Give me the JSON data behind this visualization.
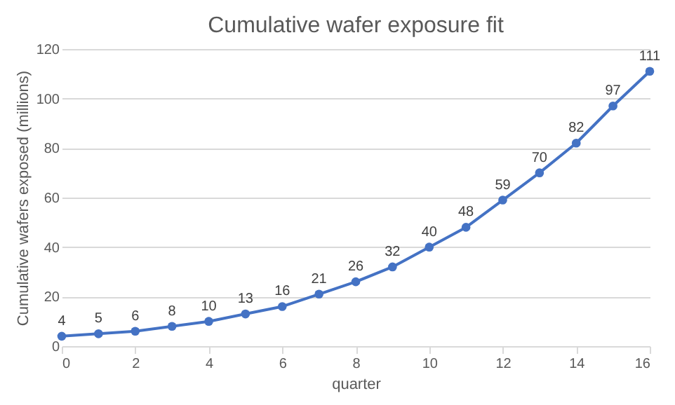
{
  "chart_data": {
    "type": "line",
    "title": "Cumulative wafer exposure fit",
    "xlabel": "quarter",
    "ylabel": "Cumulative wafers exposed (millions)",
    "x": [
      0,
      1,
      2,
      3,
      4,
      5,
      6,
      7,
      8,
      9,
      10,
      11,
      12,
      13,
      14,
      15,
      16
    ],
    "series": [
      {
        "color": "#4472c4",
        "values": [
          4,
          5,
          6,
          8,
          10,
          13,
          16,
          21,
          26,
          32,
          40,
          48,
          59,
          70,
          82,
          97,
          111
        ]
      }
    ],
    "xlim": [
      0,
      16
    ],
    "xticks": [
      0,
      2,
      4,
      6,
      8,
      10,
      12,
      14,
      16
    ],
    "ylim": [
      0,
      120
    ],
    "yticks": [
      0,
      20,
      40,
      60,
      80,
      100,
      120
    ],
    "grid": "y",
    "marker": "circle",
    "line_style": "solid",
    "data_labels": true
  }
}
